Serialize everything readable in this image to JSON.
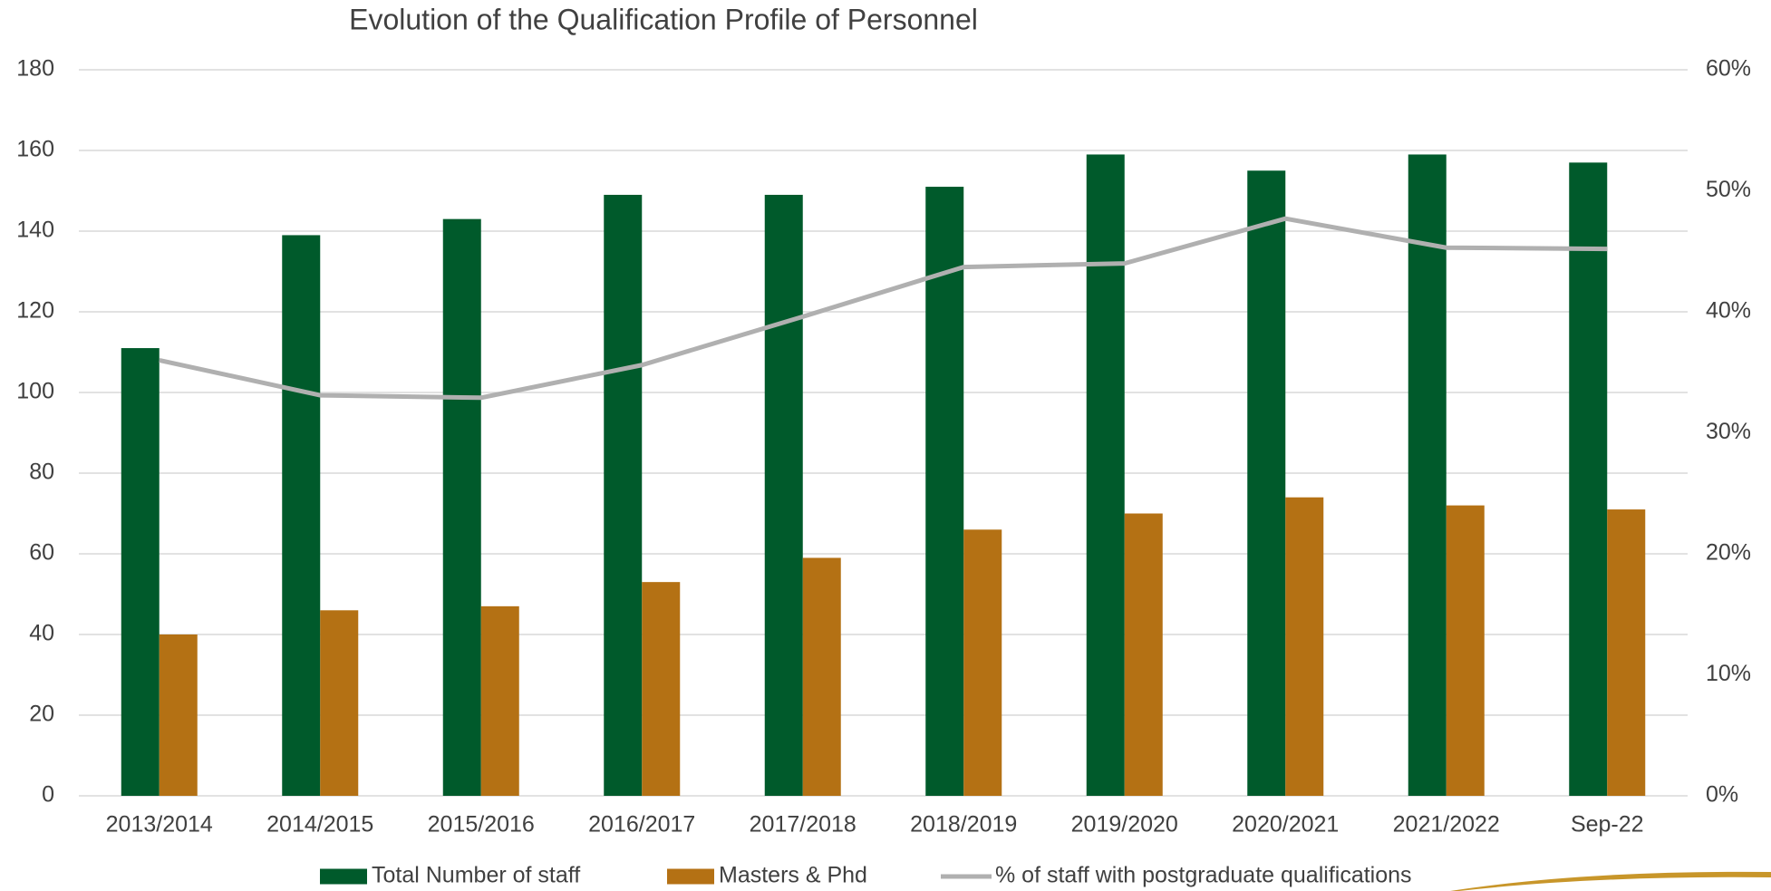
{
  "chart_data": {
    "type": "bar-line",
    "title": "Evolution of the Qualification Profile of Personnel",
    "categories": [
      "2013/2014",
      "2014/2015",
      "2015/2016",
      "2016/2017",
      "2017/2018",
      "2018/2019",
      "2019/2020",
      "2020/2021",
      "2021/2022",
      "Sep-22"
    ],
    "series": [
      {
        "name": "Total Number of staff",
        "type": "bar",
        "color": "#005a2b",
        "values": [
          111,
          139,
          143,
          149,
          149,
          151,
          159,
          155,
          159,
          157
        ]
      },
      {
        "name": "Masters & Phd",
        "type": "bar",
        "color": "#b47114",
        "values": [
          40,
          46,
          47,
          53,
          59,
          66,
          70,
          74,
          72,
          71
        ]
      },
      {
        "name": "% of staff with postgraduate qualifications",
        "type": "line",
        "axis": "y2",
        "color": "#b0b0b0",
        "values": [
          36.0,
          33.1,
          32.9,
          35.6,
          39.6,
          43.7,
          44.0,
          47.7,
          45.3,
          45.2
        ]
      }
    ],
    "ylim": [
      0,
      180
    ],
    "yticks": [
      0,
      20,
      40,
      60,
      80,
      100,
      120,
      140,
      160,
      180
    ],
    "y2lim": [
      0,
      60
    ],
    "y2ticks": [
      {
        "value": 0,
        "label": "0%"
      },
      {
        "value": 10,
        "label": "10%"
      },
      {
        "value": 20,
        "label": "20%"
      },
      {
        "value": 30,
        "label": "30%"
      },
      {
        "value": 40,
        "label": "40%"
      },
      {
        "value": 50,
        "label": "50%"
      },
      {
        "value": 60,
        "label": "60%"
      }
    ],
    "grid": true,
    "legend": "bottom"
  }
}
